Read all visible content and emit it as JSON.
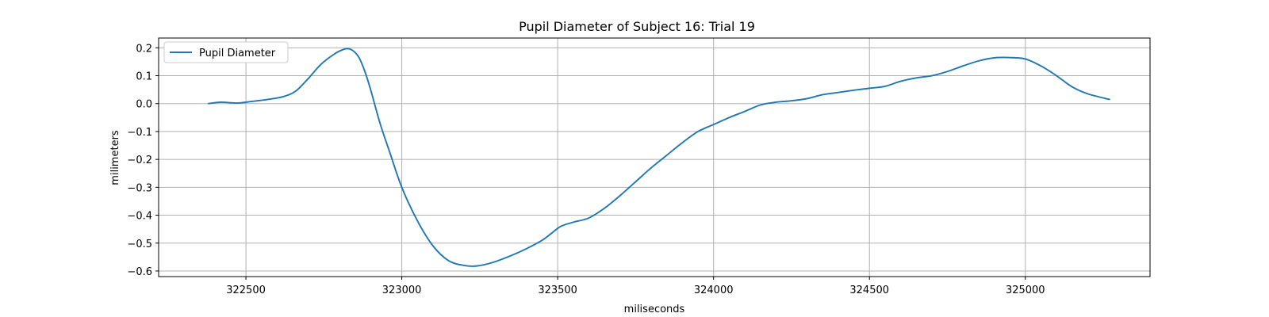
{
  "chart_data": {
    "type": "line",
    "title": "Pupil Diameter of Subject 16: Trial 19",
    "xlabel": "miliseconds",
    "ylabel": "milimeters",
    "xlim": [
      322220,
      325400
    ],
    "ylim": [
      -0.62,
      0.235
    ],
    "xticks": [
      322500,
      323000,
      323500,
      324000,
      324500,
      325000
    ],
    "xtick_labels": [
      "322500",
      "323000",
      "323500",
      "324000",
      "324500",
      "325000"
    ],
    "yticks": [
      0.2,
      0.1,
      0.0,
      -0.1,
      -0.2,
      -0.3,
      -0.4,
      -0.5,
      -0.6
    ],
    "ytick_labels": [
      "0.2",
      "0.1",
      "0.0",
      "−0.1",
      "−0.2",
      "−0.3",
      "−0.4",
      "−0.5",
      "−0.6"
    ],
    "grid": true,
    "legend_position": "upper-left",
    "series": [
      {
        "name": "Pupil Diameter",
        "color": "#1f77b4",
        "x": [
          322380,
          322420,
          322470,
          322520,
          322570,
          322620,
          322660,
          322700,
          322740,
          322780,
          322810,
          322835,
          322860,
          322880,
          322900,
          322930,
          322960,
          323000,
          323050,
          323100,
          323150,
          323200,
          323240,
          323290,
          323350,
          323400,
          323450,
          323480,
          323510,
          323550,
          323600,
          323650,
          323700,
          323750,
          323800,
          323850,
          323900,
          323950,
          324000,
          324050,
          324100,
          324150,
          324200,
          324250,
          324300,
          324350,
          324400,
          324450,
          324500,
          324550,
          324600,
          324650,
          324700,
          324750,
          324800,
          324850,
          324900,
          324950,
          325000,
          325050,
          325100,
          325150,
          325200,
          325270
        ],
        "y": [
          0.0,
          0.005,
          0.002,
          0.008,
          0.015,
          0.025,
          0.045,
          0.09,
          0.14,
          0.175,
          0.193,
          0.195,
          0.17,
          0.12,
          0.05,
          -0.07,
          -0.17,
          -0.3,
          -0.42,
          -0.51,
          -0.563,
          -0.58,
          -0.582,
          -0.57,
          -0.545,
          -0.52,
          -0.49,
          -0.465,
          -0.44,
          -0.425,
          -0.41,
          -0.375,
          -0.33,
          -0.28,
          -0.23,
          -0.185,
          -0.14,
          -0.1,
          -0.075,
          -0.05,
          -0.028,
          -0.005,
          0.005,
          0.01,
          0.018,
          0.032,
          0.04,
          0.048,
          0.055,
          0.062,
          0.08,
          0.092,
          0.1,
          0.115,
          0.135,
          0.153,
          0.164,
          0.165,
          0.16,
          0.135,
          0.1,
          0.06,
          0.035,
          0.015
        ]
      }
    ]
  }
}
